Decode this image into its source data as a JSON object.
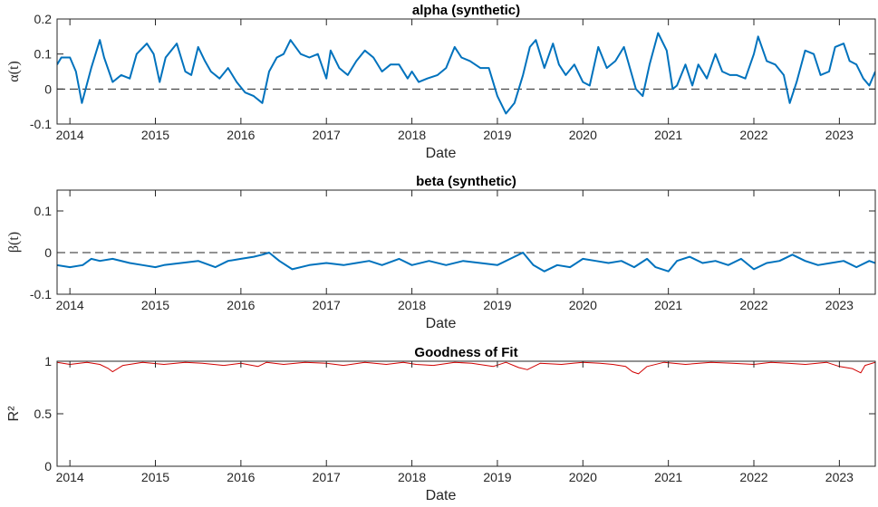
{
  "chart_data": [
    {
      "type": "line",
      "title": "alpha (synthetic)",
      "xlabel": "Date",
      "ylabel": "α(t)",
      "xlim": [
        2013.85,
        2023.42
      ],
      "ylim": [
        -0.1,
        0.2
      ],
      "xticks": [
        "2014",
        "2015",
        "2016",
        "2017",
        "2018",
        "2019",
        "2020",
        "2021",
        "2022",
        "2023"
      ],
      "yticks": [
        "-0.1",
        "0",
        "0.1",
        "0.2"
      ],
      "reference_line": 0,
      "color": "#0072BD",
      "series": [
        {
          "name": "alpha",
          "x": [
            2013.85,
            2013.9,
            2014.0,
            2014.07,
            2014.14,
            2014.25,
            2014.35,
            2014.4,
            2014.5,
            2014.6,
            2014.7,
            2014.78,
            2014.9,
            2014.98,
            2015.05,
            2015.12,
            2015.25,
            2015.35,
            2015.42,
            2015.5,
            2015.58,
            2015.65,
            2015.75,
            2015.85,
            2015.95,
            2016.05,
            2016.15,
            2016.25,
            2016.33,
            2016.42,
            2016.5,
            2016.58,
            2016.7,
            2016.8,
            2016.9,
            2017.0,
            2017.05,
            2017.15,
            2017.25,
            2017.35,
            2017.45,
            2017.55,
            2017.65,
            2017.75,
            2017.85,
            2017.95,
            2018.0,
            2018.08,
            2018.18,
            2018.3,
            2018.4,
            2018.5,
            2018.58,
            2018.68,
            2018.8,
            2018.9,
            2019.0,
            2019.1,
            2019.2,
            2019.3,
            2019.38,
            2019.45,
            2019.55,
            2019.65,
            2019.72,
            2019.8,
            2019.9,
            2020.0,
            2020.08,
            2020.18,
            2020.28,
            2020.38,
            2020.48,
            2020.55,
            2020.62,
            2020.7,
            2020.78,
            2020.88,
            2020.98,
            2021.05,
            2021.1,
            2021.2,
            2021.28,
            2021.35,
            2021.45,
            2021.55,
            2021.63,
            2021.72,
            2021.8,
            2021.9,
            2022.0,
            2022.05,
            2022.15,
            2022.25,
            2022.35,
            2022.42,
            2022.5,
            2022.6,
            2022.7,
            2022.78,
            2022.88,
            2022.95,
            2023.05,
            2023.12,
            2023.2,
            2023.28,
            2023.35,
            2023.42
          ],
          "y": [
            0.07,
            0.09,
            0.09,
            0.05,
            -0.04,
            0.06,
            0.14,
            0.09,
            0.02,
            0.04,
            0.03,
            0.1,
            0.13,
            0.1,
            0.02,
            0.09,
            0.13,
            0.05,
            0.04,
            0.12,
            0.08,
            0.05,
            0.03,
            0.06,
            0.02,
            -0.01,
            -0.02,
            -0.04,
            0.05,
            0.09,
            0.1,
            0.14,
            0.1,
            0.09,
            0.1,
            0.03,
            0.11,
            0.06,
            0.04,
            0.08,
            0.11,
            0.09,
            0.05,
            0.07,
            0.07,
            0.03,
            0.05,
            0.02,
            0.03,
            0.04,
            0.06,
            0.12,
            0.09,
            0.08,
            0.06,
            0.06,
            -0.02,
            -0.07,
            -0.04,
            0.04,
            0.12,
            0.14,
            0.06,
            0.13,
            0.07,
            0.04,
            0.07,
            0.02,
            0.01,
            0.12,
            0.06,
            0.08,
            0.12,
            0.06,
            0.0,
            -0.02,
            0.07,
            0.16,
            0.11,
            0.0,
            0.01,
            0.07,
            0.01,
            0.07,
            0.03,
            0.1,
            0.05,
            0.04,
            0.04,
            0.03,
            0.1,
            0.15,
            0.08,
            0.07,
            0.04,
            -0.04,
            0.02,
            0.11,
            0.1,
            0.04,
            0.05,
            0.12,
            0.13,
            0.08,
            0.07,
            0.03,
            0.01,
            0.05
          ]
        }
      ]
    },
    {
      "type": "line",
      "title": "beta (synthetic)",
      "xlabel": "Date",
      "ylabel": "β(t)",
      "xlim": [
        2013.85,
        2023.42
      ],
      "ylim": [
        -0.1,
        0.15
      ],
      "xticks": [
        "2014",
        "2015",
        "2016",
        "2017",
        "2018",
        "2019",
        "2020",
        "2021",
        "2022",
        "2023"
      ],
      "yticks": [
        "-0.1",
        "0",
        "0.1"
      ],
      "reference_line": 0,
      "color": "#0072BD",
      "series": [
        {
          "name": "beta",
          "x": [
            2013.85,
            2014.0,
            2014.15,
            2014.25,
            2014.35,
            2014.5,
            2014.7,
            2014.85,
            2015.0,
            2015.1,
            2015.3,
            2015.5,
            2015.7,
            2015.85,
            2016.0,
            2016.15,
            2016.25,
            2016.33,
            2016.45,
            2016.6,
            2016.8,
            2017.0,
            2017.2,
            2017.35,
            2017.5,
            2017.65,
            2017.85,
            2018.0,
            2018.2,
            2018.4,
            2018.6,
            2018.8,
            2019.0,
            2019.15,
            2019.3,
            2019.42,
            2019.55,
            2019.7,
            2019.85,
            2020.0,
            2020.15,
            2020.3,
            2020.45,
            2020.6,
            2020.75,
            2020.85,
            2021.0,
            2021.1,
            2021.25,
            2021.4,
            2021.55,
            2021.7,
            2021.85,
            2022.0,
            2022.15,
            2022.3,
            2022.45,
            2022.6,
            2022.75,
            2022.9,
            2023.05,
            2023.2,
            2023.35,
            2023.42
          ],
          "y": [
            -0.03,
            -0.035,
            -0.03,
            -0.015,
            -0.02,
            -0.015,
            -0.025,
            -0.03,
            -0.035,
            -0.03,
            -0.025,
            -0.02,
            -0.035,
            -0.02,
            -0.015,
            -0.01,
            -0.005,
            0.0,
            -0.02,
            -0.04,
            -0.03,
            -0.025,
            -0.03,
            -0.025,
            -0.02,
            -0.03,
            -0.015,
            -0.03,
            -0.02,
            -0.03,
            -0.02,
            -0.025,
            -0.03,
            -0.015,
            0.0,
            -0.03,
            -0.045,
            -0.03,
            -0.035,
            -0.015,
            -0.02,
            -0.025,
            -0.02,
            -0.035,
            -0.015,
            -0.035,
            -0.045,
            -0.02,
            -0.01,
            -0.025,
            -0.02,
            -0.03,
            -0.015,
            -0.04,
            -0.025,
            -0.02,
            -0.005,
            -0.02,
            -0.03,
            -0.025,
            -0.02,
            -0.035,
            -0.02,
            -0.025
          ]
        }
      ]
    },
    {
      "type": "line",
      "title": "Goodness of Fit",
      "xlabel": "Date",
      "ylabel": "R²",
      "xlim": [
        2013.85,
        2023.42
      ],
      "ylim": [
        0,
        1
      ],
      "xticks": [
        "2014",
        "2015",
        "2016",
        "2017",
        "2018",
        "2019",
        "2020",
        "2021",
        "2022",
        "2023"
      ],
      "yticks": [
        "0",
        "0.5",
        "1"
      ],
      "color": "#D00000",
      "series": [
        {
          "name": "R2",
          "x": [
            2013.85,
            2014.0,
            2014.2,
            2014.35,
            2014.45,
            2014.5,
            2014.62,
            2014.85,
            2015.1,
            2015.35,
            2015.55,
            2015.8,
            2016.0,
            2016.2,
            2016.3,
            2016.5,
            2016.75,
            2017.0,
            2017.2,
            2017.45,
            2017.7,
            2017.9,
            2018.05,
            2018.25,
            2018.5,
            2018.7,
            2018.95,
            2019.1,
            2019.25,
            2019.35,
            2019.5,
            2019.75,
            2020.0,
            2020.2,
            2020.35,
            2020.5,
            2020.58,
            2020.65,
            2020.75,
            2020.95,
            2021.2,
            2021.5,
            2021.75,
            2022.0,
            2022.2,
            2022.4,
            2022.6,
            2022.85,
            2023.0,
            2023.15,
            2023.25,
            2023.3,
            2023.42
          ],
          "y": [
            0.99,
            0.97,
            0.99,
            0.97,
            0.93,
            0.9,
            0.96,
            0.99,
            0.97,
            0.99,
            0.98,
            0.96,
            0.98,
            0.95,
            0.99,
            0.97,
            0.99,
            0.98,
            0.96,
            0.99,
            0.97,
            0.99,
            0.97,
            0.96,
            0.99,
            0.98,
            0.95,
            0.99,
            0.94,
            0.92,
            0.98,
            0.97,
            0.99,
            0.98,
            0.97,
            0.95,
            0.9,
            0.88,
            0.95,
            0.99,
            0.97,
            0.99,
            0.98,
            0.97,
            0.99,
            0.98,
            0.97,
            0.99,
            0.95,
            0.93,
            0.89,
            0.96,
            0.99
          ]
        }
      ]
    }
  ]
}
